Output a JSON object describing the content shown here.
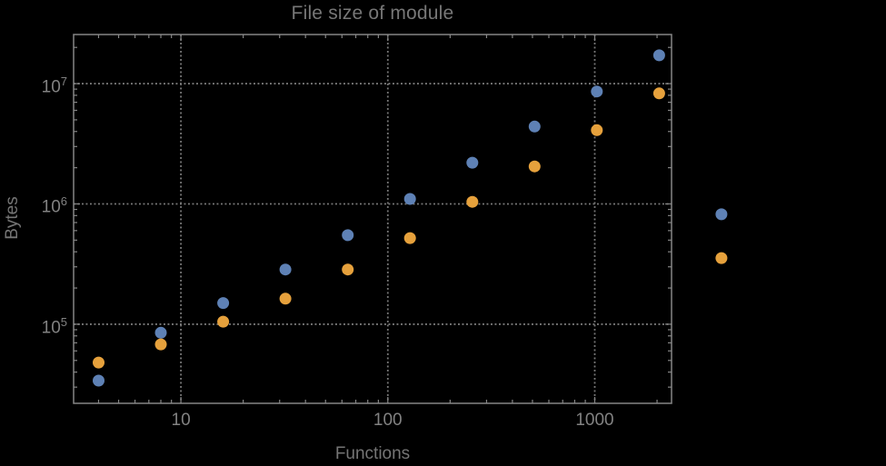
{
  "chart": {
    "title": "File size of module",
    "xlabel": "Functions",
    "ylabel": "Bytes"
  },
  "chart_data": {
    "type": "scatter",
    "title": "File size of module",
    "xlabel": "Functions",
    "ylabel": "Bytes",
    "x_scale": "log",
    "y_scale": "log",
    "grid": "dotted gridlines at decades, frame ticks on all four sides, no legend",
    "x": [
      4,
      8,
      16,
      32,
      64,
      128,
      256,
      512,
      1024,
      2048,
      4096
    ],
    "series": [
      {
        "name": "blue-series",
        "color": "#5E81B5",
        "values": [
          34000,
          85000,
          150000,
          285000,
          550000,
          1100000,
          2200000,
          4400000,
          8600000,
          17200000,
          820000
        ]
      },
      {
        "name": "orange-series",
        "color": "#E6A13C",
        "values": [
          48000,
          68000,
          105000,
          163000,
          285000,
          520000,
          1040000,
          2050000,
          4100000,
          8300000,
          355000
        ]
      }
    ],
    "x_ticks": [
      10,
      100,
      1000
    ],
    "x_tick_labels": [
      "10",
      "100",
      "1000"
    ],
    "y_ticks": [
      100000,
      1000000,
      10000000
    ],
    "y_tick_base": "10",
    "y_tick_exponents": [
      "5",
      "6",
      "7"
    ],
    "xlim": [
      3.03,
      2350
    ],
    "ylim": [
      22000,
      25600000
    ],
    "note": "x=4096 points are drawn outside the right frame edge (no plot-range clipping)"
  },
  "style": {
    "background": "#000000",
    "frame_color": "#868686",
    "grid_color": "#7A7A7A",
    "tick_label_color": "#828282",
    "title_color": "#777777",
    "axis_label_color": "#757575",
    "point_blue": "#5E81B5",
    "point_orange": "#E6A13C"
  }
}
